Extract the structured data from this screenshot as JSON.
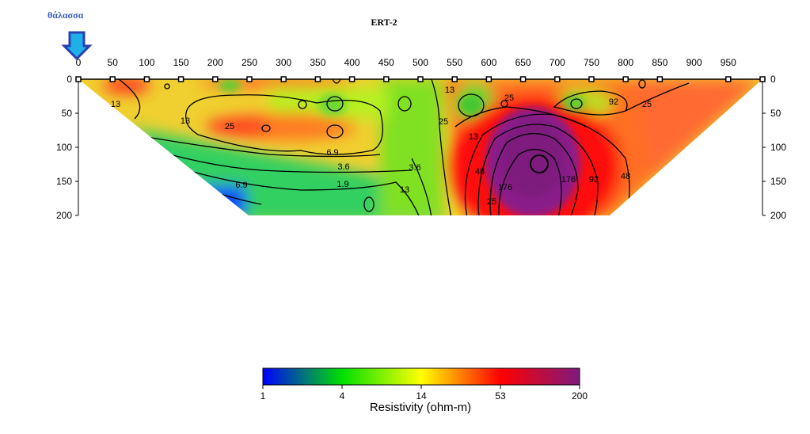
{
  "annotation": {
    "sea_label": "θάλασσα",
    "marker": "down-arrow"
  },
  "chart_data": {
    "type": "heatmap",
    "title": "ERT-2",
    "x_ticks": [
      0,
      50,
      100,
      150,
      200,
      250,
      300,
      350,
      400,
      450,
      500,
      550,
      600,
      650,
      700,
      750,
      800,
      850,
      900,
      950
    ],
    "y_ticks": [
      0,
      50,
      100,
      150,
      200
    ],
    "xlim": [
      0,
      1000
    ],
    "ylim": [
      0,
      200
    ],
    "electrodes_x": [
      0,
      50,
      100,
      150,
      200,
      250,
      300,
      350,
      400,
      450,
      500,
      550,
      600,
      650,
      700,
      750,
      800,
      850,
      950,
      1000
    ],
    "section": {
      "top_width_x": [
        0,
        1000
      ],
      "bottom_width_x": [
        250,
        780
      ]
    },
    "contour_labels": [
      "13",
      "25",
      "13",
      "6.9",
      "3.6",
      "1.9",
      "6.9",
      "3.6",
      "13",
      "25",
      "13",
      "25",
      "13",
      "25",
      "48",
      "92",
      "176",
      "176",
      "92",
      "48",
      "25"
    ],
    "colorbar": {
      "label": "Resistivity (ohm-m)",
      "ticks": [
        "1",
        "4",
        "14",
        "53",
        "200"
      ],
      "colors": [
        "#0000ff",
        "#00ff00",
        "#ffff00",
        "#ff0000",
        "#800080"
      ],
      "scale": "log"
    }
  }
}
